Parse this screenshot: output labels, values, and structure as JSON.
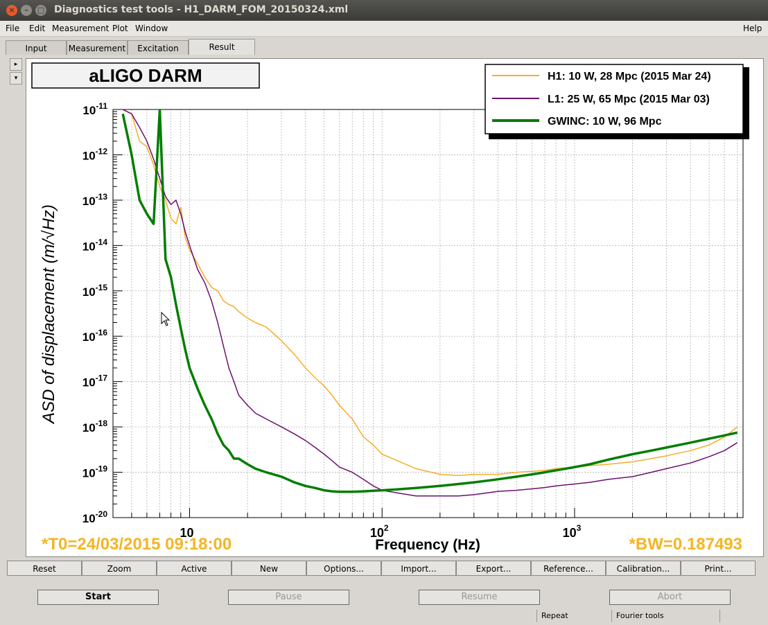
{
  "window": {
    "title": "Diagnostics test tools - H1_DARM_FOM_20150324.xml"
  },
  "menu": [
    "File",
    "Edit",
    "Measurement",
    "Plot",
    "Window"
  ],
  "menu_help": "Help",
  "tabs": [
    "Input",
    "Measurement",
    "Excitation",
    "Result"
  ],
  "active_tab": "Result",
  "buttons": [
    "Reset",
    "Zoom",
    "Active",
    "New",
    "Options...",
    "Import...",
    "Export...",
    "Reference...",
    "Calibration...",
    "Print..."
  ],
  "controls": {
    "start": "Start",
    "pause": "Pause",
    "resume": "Resume",
    "abort": "Abort"
  },
  "status": {
    "repeat": "Repeat",
    "fourier": "Fourier tools"
  },
  "plot": {
    "panel_title": "aLIGO DARM",
    "t0_label": "*T0=24/03/2015 09:18:00",
    "bw_label": "*BW=0.187493",
    "annotation_color": "#f5b523"
  },
  "chart_data": {
    "type": "line",
    "title": "aLIGO DARM",
    "xlabel": "Frequency (Hz)",
    "ylabel": "ASD of displacement (m/√Hz)",
    "xscale": "log",
    "yscale": "log",
    "xlim": [
      4,
      7500
    ],
    "ylim": [
      1e-20,
      1e-11
    ],
    "grid": true,
    "legend_position": "top-right",
    "x_tick_labels": [
      "10",
      "10^2",
      "10^3"
    ],
    "y_tick_labels": [
      "10^-11",
      "10^-12",
      "10^-13",
      "10^-14",
      "10^-15",
      "10^-16",
      "10^-17",
      "10^-18",
      "10^-19",
      "10^-20"
    ],
    "series": [
      {
        "name": "H1: 10 W, 28 Mpc (2015 Mar 24)",
        "color": "#f5ad28",
        "x": [
          4.5,
          5,
          5.5,
          6,
          6.5,
          7,
          7.5,
          8,
          8.5,
          9,
          9.5,
          10,
          11,
          12,
          13,
          14,
          15,
          16,
          17,
          18,
          20,
          22,
          25,
          30,
          35,
          40,
          45,
          50,
          55,
          60,
          70,
          80,
          90,
          100,
          120,
          150,
          200,
          250,
          300,
          350,
          400,
          500,
          600,
          700,
          800,
          1000,
          1200,
          1500,
          2000,
          2500,
          3000,
          4000,
          5000,
          6000,
          7000
        ],
        "y": [
          1e-11,
          8e-12,
          2e-12,
          1.5e-12,
          6e-13,
          2e-13,
          1e-13,
          4e-14,
          3e-14,
          7e-14,
          1.5e-14,
          8e-15,
          4e-15,
          2e-15,
          1.2e-15,
          1e-15,
          6e-16,
          5e-16,
          4.5e-16,
          3.5e-16,
          2.5e-16,
          2e-16,
          1.6e-16,
          8e-17,
          4e-17,
          2e-17,
          1.2e-17,
          8e-18,
          5e-18,
          3e-18,
          1.5e-18,
          6e-19,
          4e-19,
          2.5e-19,
          1.8e-19,
          1.2e-19,
          9e-20,
          8.5e-20,
          9e-20,
          9e-20,
          9e-20,
          1e-19,
          1.05e-19,
          1.1e-19,
          1.2e-19,
          1.3e-19,
          1.4e-19,
          1.5e-19,
          1.7e-19,
          2e-19,
          2.3e-19,
          3e-19,
          4e-19,
          6e-19,
          1e-18
        ]
      },
      {
        "name": "L1: 25 W, 65 Mpc (2015 Mar 03)",
        "color": "#6b0f6f",
        "x": [
          4.5,
          5,
          5.5,
          6,
          6.5,
          7,
          7.5,
          8,
          8.5,
          9,
          9.5,
          10,
          11,
          12,
          13,
          14,
          15,
          16,
          17,
          18,
          20,
          22,
          25,
          30,
          35,
          40,
          45,
          50,
          55,
          60,
          70,
          80,
          90,
          100,
          120,
          150,
          200,
          250,
          300,
          350,
          400,
          500,
          600,
          700,
          800,
          1000,
          1200,
          1500,
          2000,
          2500,
          3000,
          4000,
          5000,
          6000,
          7000
        ],
        "y": [
          1e-11,
          8e-12,
          4e-12,
          2e-12,
          8e-13,
          3e-13,
          1.2e-13,
          8e-14,
          1e-13,
          5e-14,
          2e-14,
          1e-14,
          3e-15,
          1.5e-15,
          6e-16,
          2e-16,
          6e-17,
          2e-17,
          1e-17,
          5e-18,
          3e-18,
          2e-18,
          1.5e-18,
          1e-18,
          7e-19,
          5e-19,
          3.5e-19,
          2.5e-19,
          1.8e-19,
          1.3e-19,
          1e-19,
          7e-20,
          5e-20,
          4e-20,
          3.5e-20,
          3e-20,
          3e-20,
          3e-20,
          3.2e-20,
          3.5e-20,
          3.8e-20,
          4e-20,
          4.3e-20,
          4.6e-20,
          5e-20,
          5.5e-20,
          6e-20,
          7e-20,
          8e-20,
          1e-19,
          1.2e-19,
          1.6e-19,
          2.2e-19,
          3e-19,
          4.5e-19
        ]
      },
      {
        "name": "GWINC: 10 W, 96 Mpc",
        "color": "#007d00",
        "x": [
          4.5,
          5,
          5.5,
          6,
          6.5,
          7,
          7.5,
          8,
          8.5,
          9,
          9.5,
          10,
          11,
          12,
          13,
          14,
          15,
          16,
          17,
          18,
          20,
          22,
          25,
          30,
          35,
          40,
          45,
          50,
          55,
          60,
          70,
          80,
          90,
          100,
          120,
          150,
          200,
          250,
          300,
          350,
          400,
          500,
          600,
          700,
          800,
          1000,
          1200,
          1500,
          2000,
          2500,
          3000,
          4000,
          5000,
          6000,
          7000
        ],
        "y": [
          8e-12,
          1e-12,
          1e-13,
          5e-14,
          3e-14,
          1e-11,
          5e-15,
          2e-15,
          5e-16,
          1.5e-16,
          5e-17,
          2e-17,
          7e-18,
          3e-18,
          1.5e-18,
          7e-19,
          4e-19,
          3e-19,
          2e-19,
          2e-19,
          1.5e-19,
          1.2e-19,
          1e-19,
          8e-20,
          6e-20,
          5e-20,
          4.5e-20,
          4e-20,
          3.8e-20,
          3.7e-20,
          3.7e-20,
          3.8e-20,
          3.9e-20,
          4e-20,
          4.2e-20,
          4.5e-20,
          5e-20,
          5.5e-20,
          6e-20,
          6.5e-20,
          7e-20,
          8e-20,
          9e-20,
          1e-19,
          1.1e-19,
          1.3e-19,
          1.5e-19,
          1.9e-19,
          2.5e-19,
          3e-19,
          3.5e-19,
          4.5e-19,
          5.5e-19,
          6.5e-19,
          7.5e-19
        ]
      }
    ]
  }
}
